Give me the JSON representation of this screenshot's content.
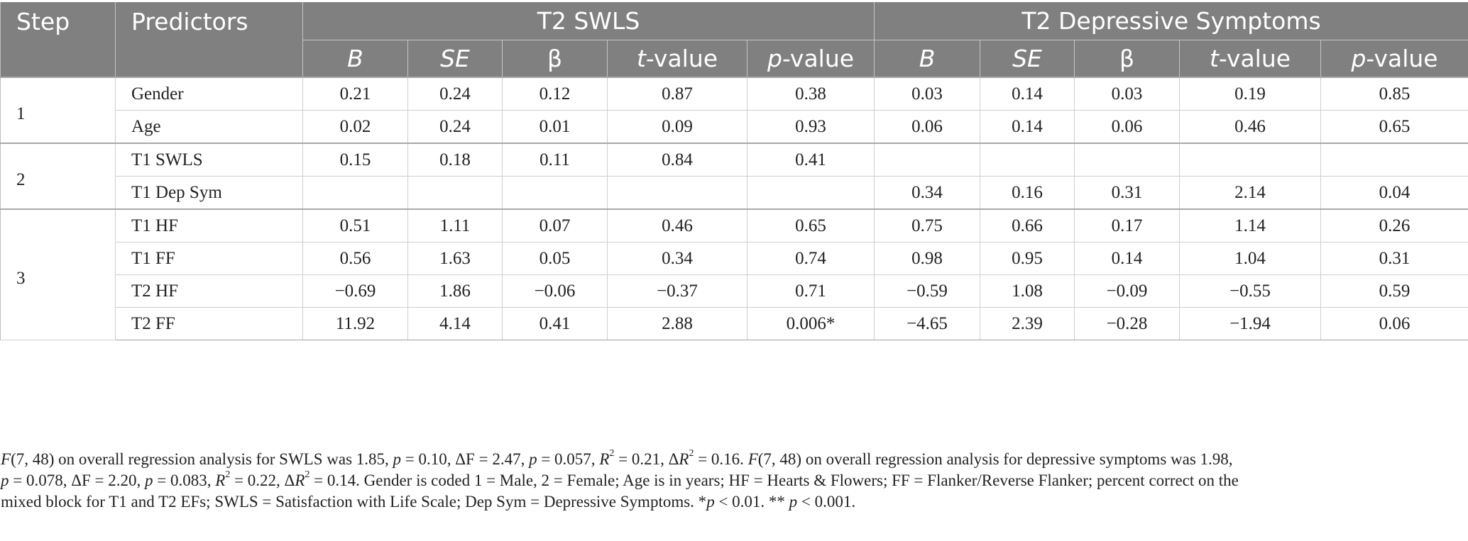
{
  "header": {
    "step": "Step",
    "predictors": "Predictors",
    "group_swls": "T2 SWLS",
    "group_dep": "T2 Depressive Symptoms",
    "col_b": "B",
    "col_se": "SE",
    "col_beta": "β",
    "col_t_italic": "t",
    "col_t_rest": "-value",
    "col_p_italic": "p",
    "col_p_rest": "-value"
  },
  "rows": [
    {
      "step": "1",
      "predictor": "Gender",
      "swls": [
        "0.21",
        "0.24",
        "0.12",
        "0.87",
        "0.38"
      ],
      "dep": [
        "0.03",
        "0.14",
        "0.03",
        "0.19",
        "0.85"
      ]
    },
    {
      "step": "",
      "predictor": "Age",
      "swls": [
        "0.02",
        "0.24",
        "0.01",
        "0.09",
        "0.93"
      ],
      "dep": [
        "0.06",
        "0.14",
        "0.06",
        "0.46",
        "0.65"
      ]
    },
    {
      "step": "2",
      "predictor": "T1 SWLS",
      "swls": [
        "0.15",
        "0.18",
        "0.11",
        "0.84",
        "0.41"
      ],
      "dep": [
        "",
        "",
        "",
        "",
        ""
      ]
    },
    {
      "step": "",
      "predictor": "T1 Dep Sym",
      "swls": [
        "",
        "",
        "",
        "",
        ""
      ],
      "dep": [
        "0.34",
        "0.16",
        "0.31",
        "2.14",
        "0.04"
      ]
    },
    {
      "step": "3",
      "predictor": "T1 HF",
      "swls": [
        "0.51",
        "1.11",
        "0.07",
        "0.46",
        "0.65"
      ],
      "dep": [
        "0.75",
        "0.66",
        "0.17",
        "1.14",
        "0.26"
      ]
    },
    {
      "step": "",
      "predictor": "T1 FF",
      "swls": [
        "0.56",
        "1.63",
        "0.05",
        "0.34",
        "0.74"
      ],
      "dep": [
        "0.98",
        "0.95",
        "0.14",
        "1.04",
        "0.31"
      ]
    },
    {
      "step": "",
      "predictor": "T2 HF",
      "swls": [
        "−0.69",
        "1.86",
        "−0.06",
        "−0.37",
        "0.71"
      ],
      "dep": [
        "−0.59",
        "1.08",
        "−0.09",
        "−0.55",
        "0.59"
      ]
    },
    {
      "step": "",
      "predictor": "T2 FF",
      "swls": [
        "11.92",
        "4.14",
        "0.41",
        "2.88",
        "0.006*"
      ],
      "dep": [
        "−4.65",
        "2.39",
        "−0.28",
        "−1.94",
        "0.06"
      ]
    }
  ],
  "note": {
    "l1_F": "F",
    "l1_a": "(7, 48) on overall regression analysis for SWLS was 1.85, ",
    "l1_p1": "p",
    "l1_b": " = 0.10, ΔF = 2.47, ",
    "l1_p2": "p",
    "l1_c": " = 0.057, ",
    "l1_R1": "R",
    "l1_sq1": "2",
    "l1_d": " = 0.21, Δ",
    "l1_R2": "R",
    "l1_sq2": "2",
    "l1_e": " = 0.16. ",
    "l1_F2": "F",
    "l1_f": "(7, 48) on overall regression analysis for depressive symptoms was 1.98,",
    "l2_p1": "p",
    "l2_a": " = 0.078, ΔF = 2.20, ",
    "l2_p2": "p",
    "l2_b": " = 0.083, ",
    "l2_R1": "R",
    "l2_sq1": "2",
    "l2_c": " = 0.22, Δ",
    "l2_R2": "R",
    "l2_sq2": "2",
    "l2_d": " = 0.14. Gender is coded 1 = Male, 2 = Female; Age is in years; HF = Hearts & Flowers; FF = Flanker/Reverse Flanker; percent correct on the",
    "l3": "mixed block for T1 and T2 EFs; SWLS = Satisfaction with Life Scale; Dep Sym = Depressive Symptoms. *",
    "l3_p1": "p",
    "l3_a": " < 0.01. ** ",
    "l3_p2": "p",
    "l3_b": " < 0.001."
  }
}
